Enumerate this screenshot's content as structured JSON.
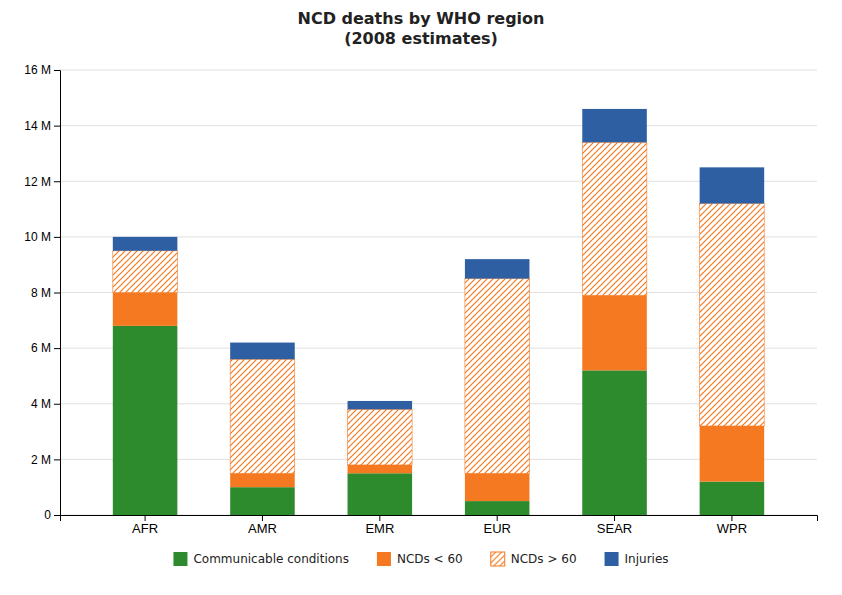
{
  "chart_data": {
    "type": "bar",
    "title": "NCD deaths by WHO region\n(2008 estimates)",
    "categories": [
      "AFR",
      "AMR",
      "EMR",
      "EUR",
      "SEAR",
      "WPR"
    ],
    "stacked": true,
    "series": [
      {
        "name": "Communicable conditions",
        "color": "#2d8a2d",
        "values": [
          6.8,
          1.0,
          1.5,
          0.5,
          5.2,
          1.2
        ]
      },
      {
        "name": "NCDs < 60",
        "color": "#f47920",
        "values": [
          1.2,
          0.5,
          0.3,
          1.0,
          2.7,
          2.0
        ]
      },
      {
        "name": "NCDs > 60",
        "color": "#f47920",
        "values": [
          1.5,
          4.1,
          2.0,
          7.0,
          5.5,
          8.0
        ]
      },
      {
        "name": "Injuries",
        "color": "#2e5fa3",
        "values": [
          0.5,
          0.6,
          0.3,
          0.7,
          1.2,
          1.3
        ]
      }
    ],
    "ylim": [
      0,
      16
    ],
    "yticks": [
      0,
      {
        "value": 2,
        "label": "2 M"
      },
      {
        "value": 4,
        "label": "4 M"
      },
      {
        "value": 6,
        "label": "6 M"
      },
      {
        "value": 8,
        "label": "8 M"
      },
      {
        "value": 10,
        "label": "10 M"
      },
      {
        "value": 12,
        "label": "12 M"
      },
      {
        "value": 14,
        "label": "14 M"
      },
      {
        "value": 16,
        "label": "16 M"
      }
    ],
    "grid": true,
    "legend": "bottom"
  }
}
